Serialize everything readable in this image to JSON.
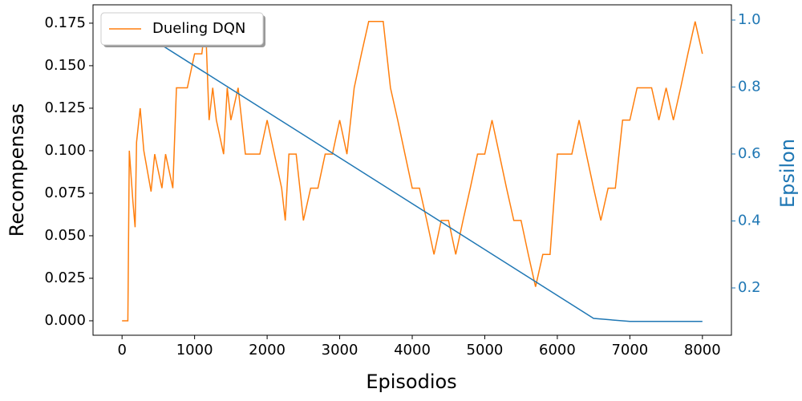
{
  "chart_data": {
    "type": "line",
    "xlabel": "Episodios",
    "ylabel": "Recompensas",
    "y2label": "Epsilon",
    "xlim": [
      -400,
      8400
    ],
    "ylim": [
      -0.0085,
      0.1858
    ],
    "y2lim": [
      0.0587,
      1.0455
    ],
    "xticks": [
      0,
      1000,
      2000,
      3000,
      4000,
      5000,
      6000,
      7000,
      8000
    ],
    "yticks": [
      {
        "value": 0,
        "label": "0.000"
      },
      {
        "value": 0.025,
        "label": "0.025"
      },
      {
        "value": 0.05,
        "label": "0.050"
      },
      {
        "value": 0.075,
        "label": "0.075"
      },
      {
        "value": 0.1,
        "label": "0.100"
      },
      {
        "value": 0.125,
        "label": "0.125"
      },
      {
        "value": 0.15,
        "label": "0.150"
      },
      {
        "value": 0.175,
        "label": "0.175"
      }
    ],
    "y2ticks": [
      0.2,
      0.4,
      0.6,
      0.8,
      {
        "value": 1,
        "label": "1.0"
      }
    ],
    "legend": "upper left",
    "grid": false,
    "series": [
      {
        "name": "Dueling DQN",
        "color": "#ff7f0e",
        "x": [
          0,
          80,
          100,
          150,
          180,
          200,
          250,
          300,
          400,
          450,
          500,
          550,
          600,
          700,
          750,
          800,
          900,
          1000,
          1100,
          1150,
          1200,
          1250,
          1300,
          1400,
          1450,
          1500,
          1600,
          1700,
          1800,
          1900,
          2000,
          2100,
          2200,
          2250,
          2300,
          2400,
          2500,
          2600,
          2700,
          2800,
          2900,
          3000,
          3100,
          3200,
          3300,
          3400,
          3500,
          3600,
          3700,
          3800,
          3900,
          4000,
          4100,
          4200,
          4300,
          4400,
          4500,
          4600,
          4700,
          4800,
          4900,
          5000,
          5100,
          5200,
          5300,
          5400,
          5500,
          5600,
          5700,
          5800,
          5900,
          6000,
          6100,
          6200,
          6300,
          6400,
          6500,
          6600,
          6700,
          6800,
          6900,
          7000,
          7100,
          7200,
          7300,
          7400,
          7500,
          7600,
          7700,
          7800,
          7900,
          8000
        ],
        "values": [
          0,
          0,
          0.1,
          0.07,
          0.055,
          0.105,
          0.125,
          0.1,
          0.076,
          0.098,
          0.088,
          0.078,
          0.098,
          0.078,
          0.137,
          0.137,
          0.137,
          0.157,
          0.157,
          0.176,
          0.118,
          0.137,
          0.118,
          0.098,
          0.137,
          0.118,
          0.137,
          0.098,
          0.098,
          0.098,
          0.118,
          0.098,
          0.078,
          0.059,
          0.098,
          0.098,
          0.059,
          0.078,
          0.078,
          0.098,
          0.098,
          0.118,
          0.098,
          0.137,
          0.157,
          0.176,
          0.176,
          0.176,
          0.137,
          0.118,
          0.098,
          0.078,
          0.078,
          0.059,
          0.039,
          0.059,
          0.059,
          0.039,
          0.059,
          0.078,
          0.098,
          0.098,
          0.118,
          0.098,
          0.078,
          0.059,
          0.059,
          0.039,
          0.02,
          0.039,
          0.039,
          0.098,
          0.098,
          0.098,
          0.118,
          0.098,
          0.078,
          0.059,
          0.078,
          0.078,
          0.118,
          0.118,
          0.137,
          0.137,
          0.137,
          0.118,
          0.137,
          0.118,
          0.137,
          0.157,
          0.176,
          0.157
        ]
      },
      {
        "name": "Epsilon",
        "color": "#1f77b4",
        "axis": "y2",
        "x": [
          0,
          6500,
          7000,
          8000
        ],
        "values": [
          1.0,
          0.109,
          0.1,
          0.1
        ]
      }
    ]
  }
}
